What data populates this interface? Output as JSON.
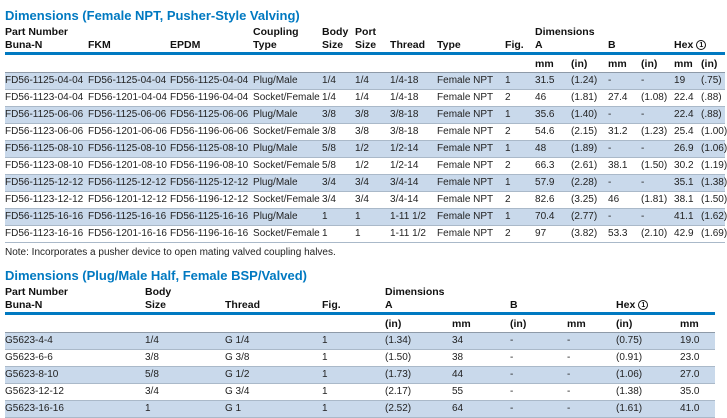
{
  "accent_color": "#0079c1",
  "stripe_color": "#c9d9eb",
  "table1": {
    "title": "Dimensions (Female NPT, Pusher-Style Valving)",
    "group_headers": {
      "part_number": "Part Number",
      "dimensions": "Dimensions"
    },
    "columns": {
      "buna": "Buna-N",
      "fkm": "FKM",
      "epdm": "EPDM",
      "coupling_line1": "Coupling",
      "coupling_line2": "Type",
      "body_line1": "Body",
      "body_line2": "Size",
      "port_line1": "Port",
      "port_line2": "Size",
      "thread": "Thread",
      "type": "Type",
      "fig": "Fig.",
      "a": "A",
      "b": "B",
      "hex": "Hex",
      "hex_footnote": "1"
    },
    "units": {
      "mm": "mm",
      "in": "(in)"
    },
    "rows": [
      [
        "FD56-1125-04-04",
        "FD56-1125-04-04",
        "FD56-1125-04-04",
        "Plug/Male",
        "1/4",
        "1/4",
        "1/4-18",
        "Female NPT",
        "1",
        "31.5",
        "(1.24)",
        "-",
        "-",
        "19",
        "(.75)"
      ],
      [
        "FD56-1123-04-04",
        "FD56-1201-04-04",
        "FD56-1196-04-04",
        "Socket/Female",
        "1/4",
        "1/4",
        "1/4-18",
        "Female NPT",
        "2",
        "46",
        "(1.81)",
        "27.4",
        "(1.08)",
        "22.4",
        "(.88)"
      ],
      [
        "FD56-1125-06-06",
        "FD56-1125-06-06",
        "FD56-1125-06-06",
        "Plug/Male",
        "3/8",
        "3/8",
        "3/8-18",
        "Female NPT",
        "1",
        "35.6",
        "(1.40)",
        "-",
        "-",
        "22.4",
        "(.88)"
      ],
      [
        "FD56-1123-06-06",
        "FD56-1201-06-06",
        "FD56-1196-06-06",
        "Socket/Female",
        "3/8",
        "3/8",
        "3/8-18",
        "Female NPT",
        "2",
        "54.6",
        "(2.15)",
        "31.2",
        "(1.23)",
        "25.4",
        "(1.00)"
      ],
      [
        "FD56-1125-08-10",
        "FD56-1125-08-10",
        "FD56-1125-08-10",
        "Plug/Male",
        "5/8",
        "1/2",
        "1/2-14",
        "Female NPT",
        "1",
        "48",
        "(1.89)",
        "-",
        "-",
        "26.9",
        "(1.06)"
      ],
      [
        "FD56-1123-08-10",
        "FD56-1201-08-10",
        "FD56-1196-08-10",
        "Socket/Female",
        "5/8",
        "1/2",
        "1/2-14",
        "Female NPT",
        "2",
        "66.3",
        "(2.61)",
        "38.1",
        "(1.50)",
        "30.2",
        "(1.19)"
      ],
      [
        "FD56-1125-12-12",
        "FD56-1125-12-12",
        "FD56-1125-12-12",
        "Plug/Male",
        "3/4",
        "3/4",
        "3/4-14",
        "Female NPT",
        "1",
        "57.9",
        "(2.28)",
        "-",
        "-",
        "35.1",
        "(1.38)"
      ],
      [
        "FD56-1123-12-12",
        "FD56-1201-12-12",
        "FD56-1196-12-12",
        "Socket/Female",
        "3/4",
        "3/4",
        "3/4-14",
        "Female NPT",
        "2",
        "82.6",
        "(3.25)",
        "46",
        "(1.81)",
        "38.1",
        "(1.50)"
      ],
      [
        "FD56-1125-16-16",
        "FD56-1125-16-16",
        "FD56-1125-16-16",
        "Plug/Male",
        "1",
        "1",
        "1-11 1/2",
        "Female NPT",
        "1",
        "70.4",
        "(2.77)",
        "-",
        "-",
        "41.1",
        "(1.62)"
      ],
      [
        "FD56-1123-16-16",
        "FD56-1201-16-16",
        "FD56-1196-16-16",
        "Socket/Female",
        "1",
        "1",
        "1-11 1/2",
        "Female NPT",
        "2",
        "97",
        "(3.82)",
        "53.3",
        "(2.10)",
        "42.9",
        "(1.69)"
      ]
    ],
    "note": "Note: Incorporates a pusher device to open mating valved coupling halves."
  },
  "table2": {
    "title": "Dimensions (Plug/Male Half, Female BSP/Valved)",
    "group_headers": {
      "part_number": "Part Number",
      "dimensions": "Dimensions"
    },
    "columns": {
      "buna": "Buna-N",
      "body_line1": "Body",
      "body_line2": "Size",
      "thread": "Thread",
      "fig": "Fig.",
      "a": "A",
      "b": "B",
      "hex": "Hex",
      "hex_footnote": "1"
    },
    "units": {
      "mm": "mm",
      "in": "(in)"
    },
    "rows": [
      [
        "G5623-4-4",
        "1/4",
        "G 1/4",
        "1",
        "(1.34)",
        "34",
        "-",
        "-",
        "(0.75)",
        "19.0"
      ],
      [
        "G5623-6-6",
        "3/8",
        "G 3/8",
        "1",
        "(1.50)",
        "38",
        "-",
        "-",
        "(0.91)",
        "23.0"
      ],
      [
        "G5623-8-10",
        "5/8",
        "G 1/2",
        "1",
        "(1.73)",
        "44",
        "-",
        "-",
        "(1.06)",
        "27.0"
      ],
      [
        "G5623-12-12",
        "3/4",
        "G 3/4",
        "1",
        "(2.17)",
        "55",
        "-",
        "-",
        "(1.38)",
        "35.0"
      ],
      [
        "G5623-16-16",
        "1",
        "G 1",
        "1",
        "(2.52)",
        "64",
        "-",
        "-",
        "(1.61)",
        "41.0"
      ]
    ]
  }
}
